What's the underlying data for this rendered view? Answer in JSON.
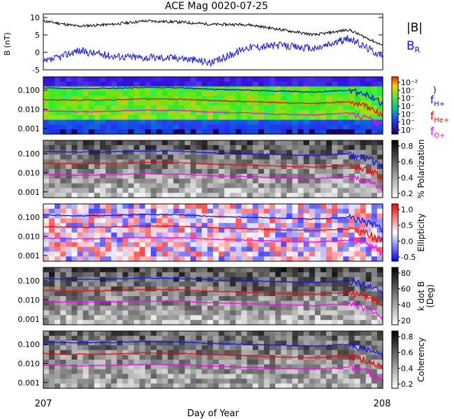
{
  "title": "ACE Mag 0020-07-25",
  "xlabel": "Day of Year",
  "colors": {
    "btot": "#000000",
    "br": "#1010ff",
    "fH": "#1010ff",
    "fHe": "#ff0000",
    "fO": "#ff00ff"
  },
  "chart_data": [
    {
      "type": "line",
      "panel": "magnetic-field",
      "ylabel": "B (nT)",
      "ylim": [
        -5,
        11
      ],
      "yticks": [
        "10",
        "5",
        "0",
        "-5"
      ],
      "x": [
        207.0,
        207.1,
        207.2,
        207.3,
        207.4,
        207.5,
        207.6,
        207.7,
        207.8,
        207.9,
        208.0
      ],
      "series": [
        {
          "name": "|B|",
          "values": [
            9.0,
            7.5,
            8.0,
            9.0,
            8.7,
            8.0,
            8.0,
            6.5,
            5.0,
            6.5,
            2.0
          ]
        },
        {
          "name": "B",
          "subscript": "R",
          "values": [
            -3.0,
            0.5,
            -1.0,
            -1.5,
            -1.5,
            -3.0,
            1.5,
            2.0,
            1.0,
            4.0,
            -1.0
          ]
        }
      ]
    },
    {
      "type": "heatmap",
      "panel": "power",
      "colorbar_ticks": [
        "10⁻²",
        "10⁻",
        "10⁻",
        "10⁻",
        "10⁻",
        "10⁻",
        "10⁻"
      ],
      "colorbar_label": ")",
      "yticks": [
        "0.100",
        "0.010",
        "0.001"
      ],
      "legend": [
        {
          "name": "f",
          "subscript": "H+"
        },
        {
          "name": "f",
          "subscript": "He+"
        },
        {
          "name": "f",
          "subscript": "O+"
        }
      ]
    },
    {
      "type": "heatmap",
      "panel": "polarization",
      "colorbar_label": "% Polarization",
      "colorbar_ticks": [
        "0.8",
        "0.6",
        "0.4",
        "0.2"
      ],
      "yticks": [
        "0.100",
        "0.010",
        "0.001"
      ]
    },
    {
      "type": "heatmap",
      "panel": "ellipticity",
      "colorbar_label": "Ellipticity",
      "colorbar_ticks": [
        "1.0",
        "0.5",
        "0.0",
        "-0.5"
      ],
      "yticks": [
        "0.100",
        "0.010",
        "0.001"
      ]
    },
    {
      "type": "heatmap",
      "panel": "k-dot-b",
      "colorbar_label": "k dot B",
      "colorbar_label2": "(Deg)",
      "colorbar_ticks": [
        "80",
        "60",
        "40",
        "20"
      ],
      "yticks": [
        "0.100",
        "0.010",
        "0.001"
      ]
    },
    {
      "type": "heatmap",
      "panel": "coherency",
      "colorbar_label": "Coherency",
      "colorbar_ticks": [
        "0.8",
        "0.6",
        "0.4",
        "0.2"
      ],
      "yticks": [
        "0.100",
        "0.010",
        "0.001"
      ]
    },
    {
      "type": "line",
      "panel": "gyrofrequency-overlays",
      "x": [
        207.0,
        207.1,
        207.2,
        207.3,
        207.4,
        207.5,
        207.6,
        207.7,
        207.8,
        207.9,
        208.0
      ],
      "series": [
        {
          "name": "f",
          "subscript": "H+",
          "values": [
            0.13,
            0.12,
            0.125,
            0.14,
            0.135,
            0.11,
            0.1,
            0.09,
            0.08,
            0.1,
            0.02
          ]
        },
        {
          "name": "f",
          "subscript": "He+",
          "values": [
            0.032,
            0.03,
            0.031,
            0.035,
            0.034,
            0.028,
            0.025,
            0.022,
            0.02,
            0.025,
            0.005
          ]
        },
        {
          "name": "f",
          "subscript": "O+",
          "values": [
            0.0082,
            0.0075,
            0.0078,
            0.0088,
            0.0085,
            0.007,
            0.0063,
            0.0055,
            0.005,
            0.0063,
            0.0013
          ]
        }
      ]
    }
  ],
  "xticks": [
    "207",
    "208"
  ]
}
